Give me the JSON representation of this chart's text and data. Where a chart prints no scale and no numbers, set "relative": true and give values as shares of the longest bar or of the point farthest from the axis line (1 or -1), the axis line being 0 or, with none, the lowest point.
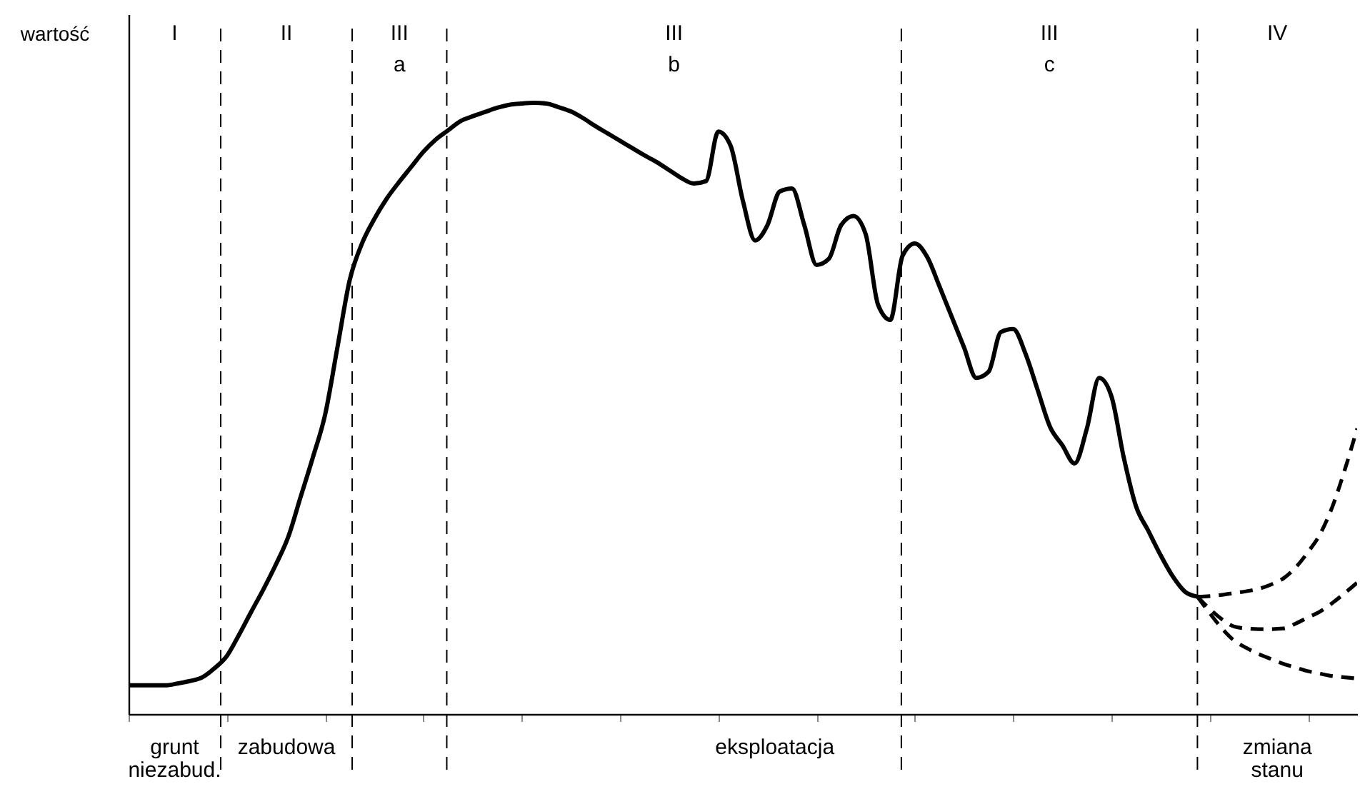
{
  "chart_data": {
    "type": "line",
    "relative": true,
    "ylabel": "wartość",
    "annotations": [
      "I",
      "II",
      "III\na",
      "III\nb",
      "III\nc",
      "IV",
      "grunt\nniezabud.",
      "zabudowa",
      "eksploatacja",
      "zmiana\nstanu"
    ],
    "categories": [
      null,
      null,
      null,
      null,
      null,
      null,
      null,
      null,
      null,
      null,
      null,
      null,
      null,
      null,
      null,
      null,
      null,
      null,
      null,
      null,
      null,
      null,
      null,
      null,
      null,
      null,
      null,
      null,
      null,
      null,
      null,
      null,
      null,
      null,
      null,
      null,
      null,
      null,
      null,
      null,
      null,
      null,
      null,
      null,
      null,
      null,
      null,
      null,
      null,
      null,
      null,
      null,
      null,
      null,
      null,
      null,
      null,
      null,
      null,
      null,
      null,
      null,
      null,
      null,
      null,
      null,
      null,
      null,
      null,
      null,
      null,
      null,
      null,
      null,
      null,
      null,
      null,
      null,
      null,
      null,
      null,
      null,
      null,
      null,
      null,
      null,
      null,
      null,
      null,
      null,
      null,
      null,
      null,
      null,
      null,
      null,
      null,
      null,
      null,
      null,
      null
    ],
    "series": [
      {
        "color": "#000000",
        "line_style": "solid",
        "values": [
          0.047,
          0.047,
          0.047,
          0.047,
          0.05,
          0.054,
          0.06,
          0.075,
          0.095,
          0.13,
          0.168,
          0.205,
          0.245,
          0.29,
          0.355,
          0.42,
          0.49,
          0.6,
          0.71,
          0.77,
          0.81,
          0.843,
          0.87,
          0.895,
          0.92,
          0.94,
          0.955,
          0.97,
          0.978,
          0.985,
          0.992,
          0.997,
          0.999,
          1,
          0.999,
          0.993,
          0.986,
          0.975,
          0.962,
          0.95,
          0.938,
          0.926,
          0.914,
          0.903,
          0.89,
          0.877,
          0.868,
          0.872,
          0.953,
          0.93,
          0.84,
          0.775,
          0.8,
          0.855,
          0.86,
          0.8,
          0.735,
          0.745,
          0.8,
          0.815,
          0.785,
          0.67,
          0.645,
          0.75,
          0.77,
          0.748,
          0.7,
          0.65,
          0.6,
          0.55,
          0.56,
          0.625,
          0.63,
          0.59,
          0.53,
          0.47,
          0.44,
          0.41,
          0.467,
          0.55,
          0.52,
          0.42,
          0.34,
          0.3,
          0.26,
          0.225,
          0.2,
          0.192,
          null,
          null,
          null,
          null,
          null,
          null,
          null,
          null,
          null,
          null,
          null,
          null,
          null
        ]
      },
      {
        "color": "#000000",
        "line_style": "dashed",
        "values": [
          null,
          null,
          null,
          null,
          null,
          null,
          null,
          null,
          null,
          null,
          null,
          null,
          null,
          null,
          null,
          null,
          null,
          null,
          null,
          null,
          null,
          null,
          null,
          null,
          null,
          null,
          null,
          null,
          null,
          null,
          null,
          null,
          null,
          null,
          null,
          null,
          null,
          null,
          null,
          null,
          null,
          null,
          null,
          null,
          null,
          null,
          null,
          null,
          null,
          null,
          null,
          null,
          null,
          null,
          null,
          null,
          null,
          null,
          null,
          null,
          null,
          null,
          null,
          null,
          null,
          null,
          null,
          null,
          null,
          null,
          null,
          null,
          null,
          null,
          null,
          null,
          null,
          null,
          null,
          null,
          null,
          null,
          null,
          null,
          null,
          null,
          null,
          0.192,
          0.193,
          0.195,
          0.198,
          0.201,
          0.205,
          0.212,
          0.222,
          0.24,
          0.265,
          0.295,
          0.34,
          0.4,
          0.467
        ]
      },
      {
        "color": "#000000",
        "line_style": "dashed",
        "values": [
          null,
          null,
          null,
          null,
          null,
          null,
          null,
          null,
          null,
          null,
          null,
          null,
          null,
          null,
          null,
          null,
          null,
          null,
          null,
          null,
          null,
          null,
          null,
          null,
          null,
          null,
          null,
          null,
          null,
          null,
          null,
          null,
          null,
          null,
          null,
          null,
          null,
          null,
          null,
          null,
          null,
          null,
          null,
          null,
          null,
          null,
          null,
          null,
          null,
          null,
          null,
          null,
          null,
          null,
          null,
          null,
          null,
          null,
          null,
          null,
          null,
          null,
          null,
          null,
          null,
          null,
          null,
          null,
          null,
          null,
          null,
          null,
          null,
          null,
          null,
          null,
          null,
          null,
          null,
          null,
          null,
          null,
          null,
          null,
          null,
          null,
          null,
          0.192,
          0.172,
          0.155,
          0.143,
          0.14,
          0.139,
          0.139,
          0.14,
          0.148,
          0.158,
          0.168,
          0.182,
          0.198,
          0.215
        ]
      },
      {
        "color": "#000000",
        "line_style": "dashed",
        "values": [
          null,
          null,
          null,
          null,
          null,
          null,
          null,
          null,
          null,
          null,
          null,
          null,
          null,
          null,
          null,
          null,
          null,
          null,
          null,
          null,
          null,
          null,
          null,
          null,
          null,
          null,
          null,
          null,
          null,
          null,
          null,
          null,
          null,
          null,
          null,
          null,
          null,
          null,
          null,
          null,
          null,
          null,
          null,
          null,
          null,
          null,
          null,
          null,
          null,
          null,
          null,
          null,
          null,
          null,
          null,
          null,
          null,
          null,
          null,
          null,
          null,
          null,
          null,
          null,
          null,
          null,
          null,
          null,
          null,
          null,
          null,
          null,
          null,
          null,
          null,
          null,
          null,
          null,
          null,
          null,
          null,
          null,
          null,
          null,
          null,
          null,
          null,
          0.192,
          0.165,
          0.14,
          0.12,
          0.108,
          0.098,
          0.09,
          0.082,
          0.076,
          0.07,
          0.066,
          0.062,
          0.06,
          0.058
        ]
      }
    ]
  }
}
